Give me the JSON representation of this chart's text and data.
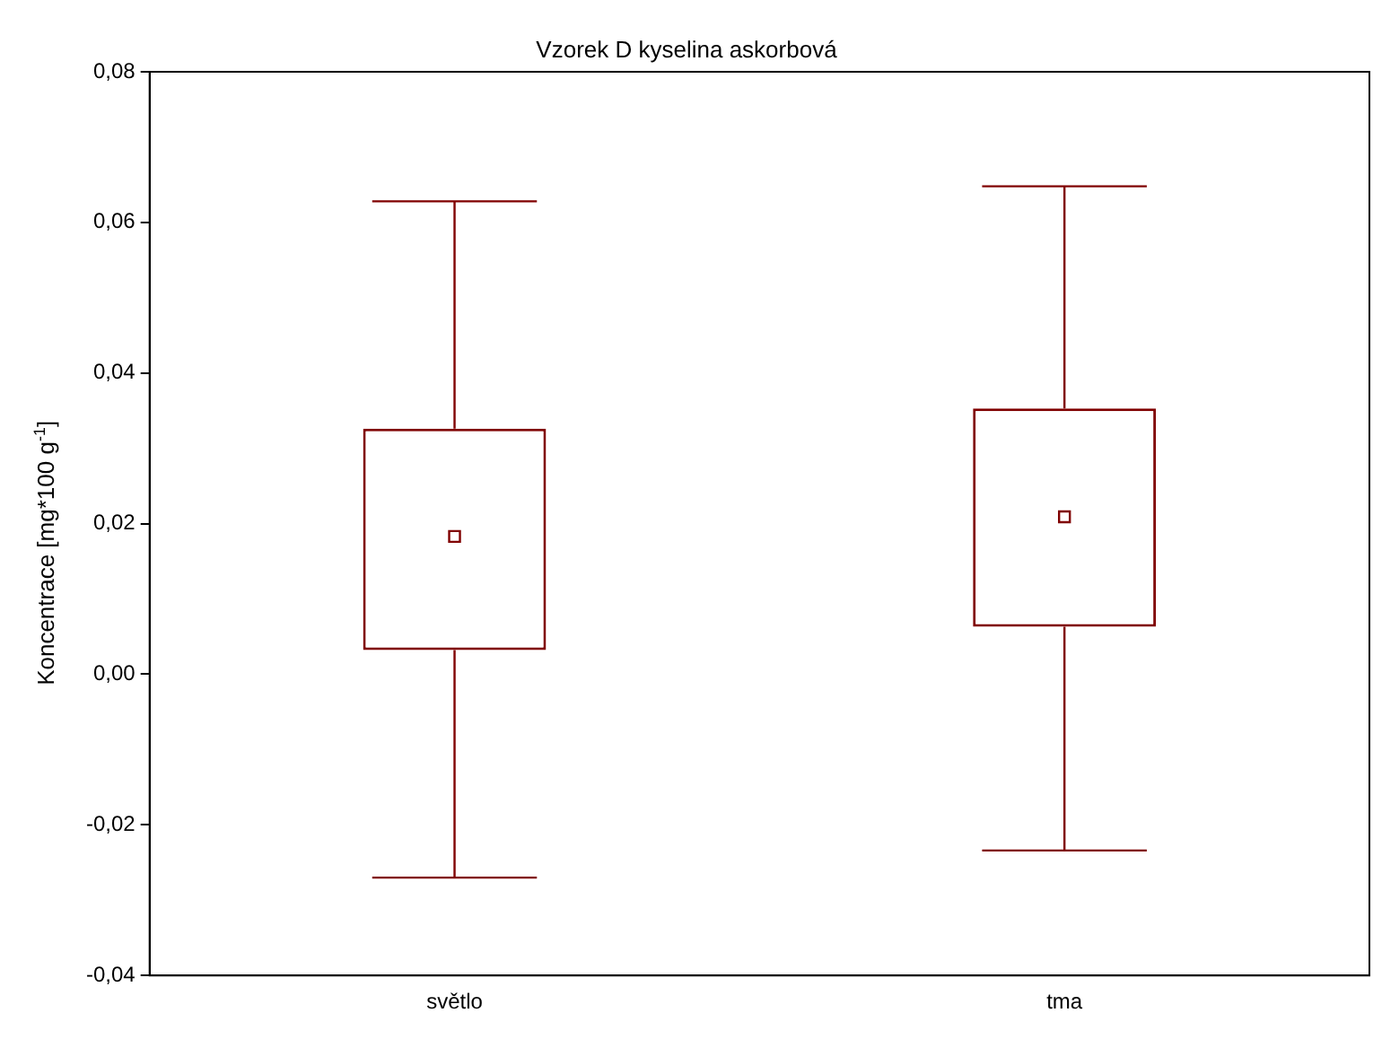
{
  "chart_data": {
    "type": "box",
    "title": "Vzorek D kyselina askorbová",
    "ylabel": "Koncentrace [mg*100 g$^{-1}$]",
    "categories": [
      "světlo",
      "tma"
    ],
    "series": [
      {
        "color": "#800000",
        "boxes": [
          {
            "low": -0.027,
            "q1": 0.0032,
            "median": 0.0183,
            "q3": 0.0326,
            "high": 0.0628
          },
          {
            "low": -0.0234,
            "q1": 0.0063,
            "median": 0.0209,
            "q3": 0.0353,
            "high": 0.0648
          }
        ]
      }
    ],
    "ylim": [
      -0.04,
      0.08
    ],
    "yticks": [
      {
        "value": -0.04,
        "label": "-0,04"
      },
      {
        "value": -0.02,
        "label": "-0,02"
      },
      {
        "value": 0,
        "label": "0,00"
      },
      {
        "value": 0.02,
        "label": "0,02"
      },
      {
        "value": 0.04,
        "label": "0,04"
      },
      {
        "value": 0.06,
        "label": "0,06"
      },
      {
        "value": 0.08,
        "label": "0,08"
      }
    ],
    "grid": false,
    "legend": false
  }
}
